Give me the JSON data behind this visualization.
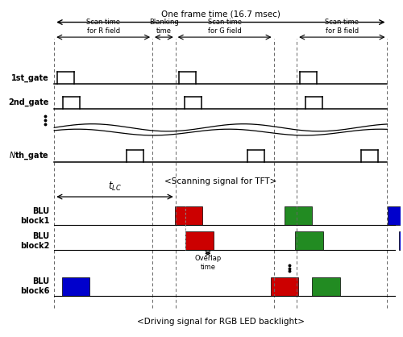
{
  "fig_width": 5.0,
  "fig_height": 4.18,
  "dpi": 100,
  "background_color": "#ffffff",
  "frame_time_label": "One frame time (16.7 msec)",
  "tft_caption": "<Scanning signal for TFT>",
  "blu_caption": "<Driving signal for RGB LED backlight>",
  "overlap_label": "Overlap\ntime",
  "t0": 0.1,
  "t1": 0.355,
  "t2": 0.415,
  "t3": 0.67,
  "t4": 0.73,
  "t5": 0.965,
  "colors": {
    "red": "#cc0000",
    "green": "#228B22",
    "blue": "#0000cc",
    "black": "#000000",
    "dashed": "#555555"
  }
}
